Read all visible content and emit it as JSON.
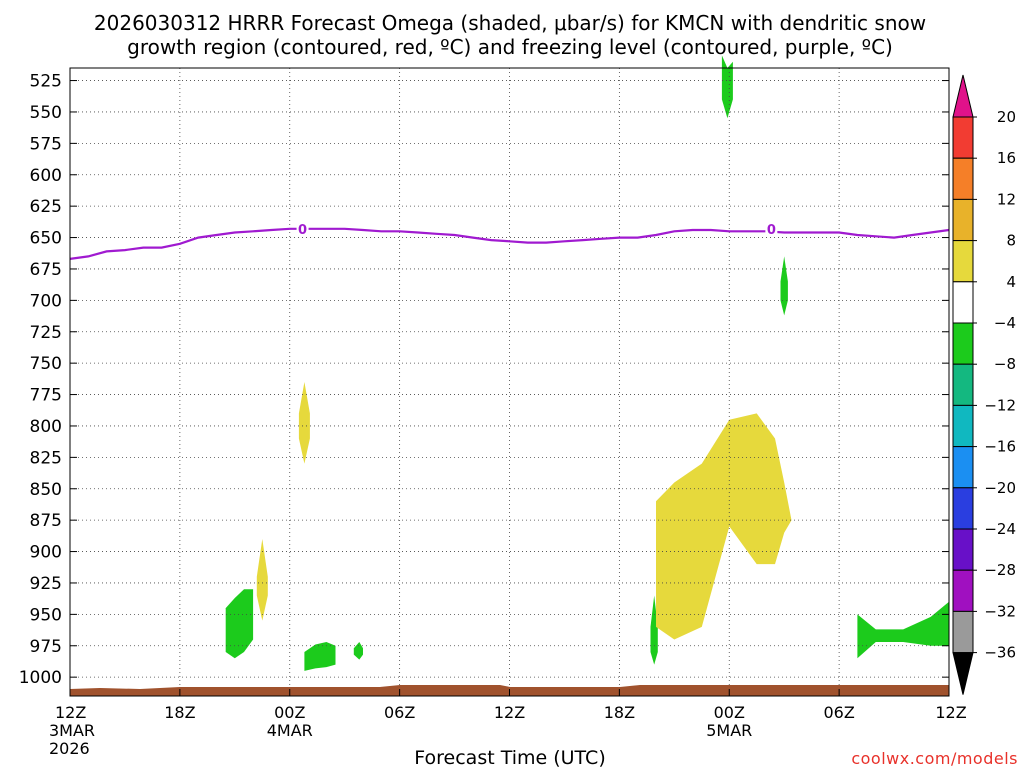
{
  "title_line1": "2026030312 HRRR Forecast Omega (shaded, μbar/s) for KMCN with dendritic snow",
  "title_line2": "growth region (contoured, red, ºC) and freezing level (contoured, purple, ºC)",
  "x_axis_title": "Forecast Time (UTC)",
  "footer_credit": "coolwx.com/models",
  "freezing_contour_label": "0",
  "chart_data": {
    "type": "heatmap",
    "title": "2026030312 HRRR Forecast Omega (shaded, μbar/s) for KMCN with dendritic snow growth region (contoured, red, ºC) and freezing level (contoured, purple, ºC)",
    "xlabel": "Forecast Time (UTC)",
    "ylabel": "",
    "x_unit": "forecast hour",
    "xlim": [
      0,
      48
    ],
    "y_unit": "hPa",
    "ylim": [
      1015,
      515
    ],
    "y_ticks": [
      525,
      550,
      575,
      600,
      625,
      650,
      675,
      700,
      725,
      750,
      775,
      800,
      825,
      850,
      875,
      900,
      925,
      950,
      975,
      1000
    ],
    "x_ticks": [
      {
        "hour": 0,
        "label": "12Z",
        "sub": [
          "3MAR",
          "2026"
        ]
      },
      {
        "hour": 6,
        "label": "18Z",
        "sub": []
      },
      {
        "hour": 12,
        "label": "00Z",
        "sub": [
          "4MAR"
        ]
      },
      {
        "hour": 18,
        "label": "06Z",
        "sub": []
      },
      {
        "hour": 24,
        "label": "12Z",
        "sub": []
      },
      {
        "hour": 30,
        "label": "18Z",
        "sub": []
      },
      {
        "hour": 36,
        "label": "00Z",
        "sub": [
          "5MAR"
        ]
      },
      {
        "hour": 42,
        "label": "06Z",
        "sub": []
      },
      {
        "hour": 48,
        "label": "12Z",
        "sub": []
      }
    ],
    "grid": true,
    "colorbar": {
      "levels": [
        "20",
        "16",
        "12",
        "8",
        "4",
        "−4",
        "−8",
        "−12",
        "−16",
        "−20",
        "−24",
        "−28",
        "−32",
        "−36"
      ],
      "top_color": "#e0128a",
      "colors": [
        "#f23c32",
        "#f57f28",
        "#e8b22a",
        "#e6d93c",
        "#ffffff",
        "#1ccb1c",
        "#14b880",
        "#10b8c0",
        "#1b8ff2",
        "#2a3ee0",
        "#6810c8",
        "#a010c0",
        "#9a9a9a"
      ],
      "bottom_color": "#000000"
    },
    "series": [
      {
        "name": "freezing level (0 ºC)",
        "color": "#a01ad0",
        "x": [
          0,
          1,
          2,
          3,
          4,
          5,
          6,
          7,
          8,
          9,
          10,
          11,
          12,
          13,
          14,
          15,
          16,
          17,
          18,
          19,
          20,
          21,
          22,
          23,
          24,
          25,
          26,
          27,
          28,
          29,
          30,
          31,
          32,
          33,
          34,
          35,
          36,
          37,
          38,
          39,
          40,
          41,
          42,
          43,
          44,
          45,
          46,
          47,
          48
        ],
        "y": [
          667,
          665,
          661,
          660,
          658,
          658,
          655,
          650,
          648,
          646,
          645,
          644,
          643,
          643,
          643,
          643,
          644,
          645,
          645,
          646,
          647,
          648,
          650,
          652,
          653,
          654,
          654,
          653,
          652,
          651,
          650,
          650,
          648,
          645,
          644,
          644,
          645,
          645,
          645,
          646,
          646,
          646,
          646,
          648,
          649,
          650,
          648,
          646,
          644
        ]
      }
    ],
    "omega_regions": [
      {
        "color": "#1ccb1c",
        "t": [
          35.6,
          35.9,
          36.2
        ],
        "p_top": [
          505,
          515,
          510
        ],
        "p_bot": [
          540,
          555,
          540
        ]
      },
      {
        "color": "#1ccb1c",
        "t": [
          38.8,
          39.0,
          39.2
        ],
        "p_top": [
          685,
          665,
          685
        ],
        "p_bot": [
          700,
          712,
          700
        ]
      },
      {
        "color": "#e6d93c",
        "t": [
          12.5,
          12.8,
          13.1
        ],
        "p_top": [
          790,
          765,
          790
        ],
        "p_bot": [
          810,
          830,
          810
        ]
      },
      {
        "color": "#e6d93c",
        "t": [
          10.2,
          10.5,
          10.8
        ],
        "p_top": [
          920,
          890,
          920
        ],
        "p_bot": [
          935,
          955,
          935
        ]
      },
      {
        "color": "#1ccb1c",
        "t": [
          8.5,
          9.0,
          9.5,
          10.0
        ],
        "p_top": [
          945,
          937,
          930,
          930
        ],
        "p_bot": [
          980,
          985,
          980,
          970
        ]
      },
      {
        "color": "#1ccb1c",
        "t": [
          12.8,
          13.4,
          14.0,
          14.5
        ],
        "p_top": [
          980,
          974,
          972,
          975
        ],
        "p_bot": [
          995,
          993,
          992,
          990
        ]
      },
      {
        "color": "#1ccb1c",
        "t": [
          15.5,
          15.8,
          16.0
        ],
        "p_top": [
          977,
          972,
          977
        ],
        "p_bot": [
          982,
          986,
          982
        ]
      },
      {
        "color": "#1ccb1c",
        "t": [
          31.7,
          31.9,
          32.1
        ],
        "p_top": [
          960,
          935,
          960
        ],
        "p_bot": [
          980,
          990,
          980
        ]
      },
      {
        "color": "#e6d93c",
        "t": [
          32.0,
          33.0,
          34.5,
          36.0,
          37.5,
          38.5,
          39.0,
          39.4
        ],
        "p_top": [
          860,
          845,
          830,
          795,
          790,
          810,
          845,
          875
        ],
        "p_bot": [
          960,
          970,
          960,
          880,
          910,
          910,
          885,
          875
        ]
      },
      {
        "color": "#1ccb1c",
        "t": [
          43.0,
          44.0,
          45.5,
          47.0,
          48.0
        ],
        "p_top": [
          950,
          962,
          962,
          952,
          940
        ],
        "p_bot": [
          985,
          972,
          972,
          975,
          975
        ]
      }
    ]
  }
}
